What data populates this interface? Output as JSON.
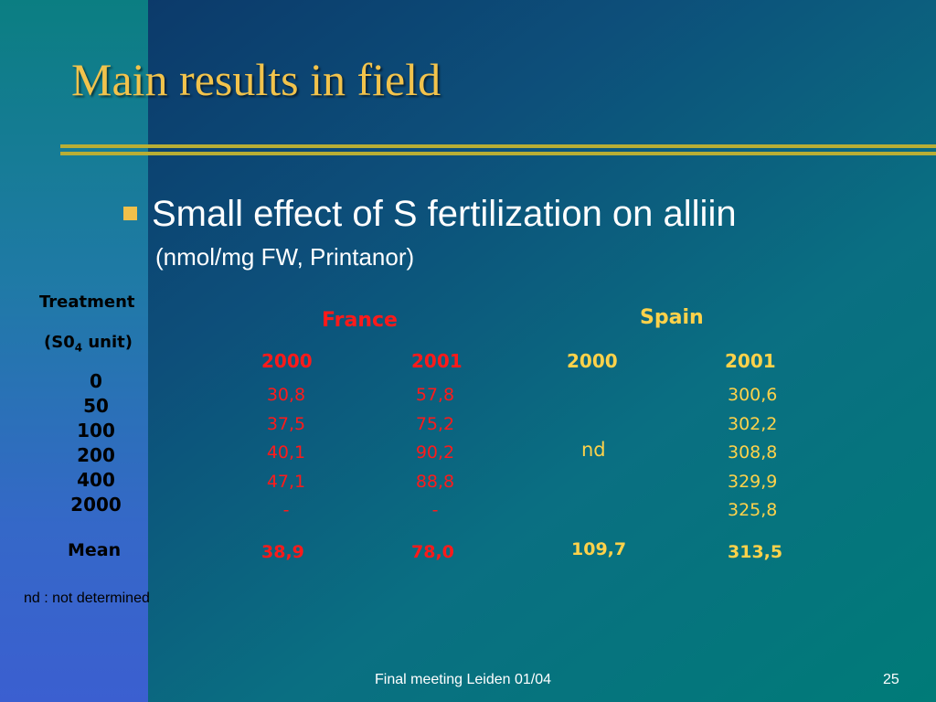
{
  "slide": {
    "title": "Main results in field",
    "bullet": "Small effect of S fertilization on alliin",
    "bullet_sub": "(nmol/mg FW, Printanor)"
  },
  "table": {
    "treatment_label": "Treatment",
    "unit_prefix": "(S0",
    "unit_sub": "4",
    "unit_suffix": " unit)",
    "doses": [
      "0",
      "50",
      "100",
      "200",
      "400",
      "2000"
    ],
    "mean_label": "Mean",
    "france": {
      "label": "France",
      "y2000": {
        "year": "2000",
        "values": [
          "30,8",
          "37,5",
          "40,1",
          "47,1",
          "-"
        ],
        "mean": "38,9"
      },
      "y2001": {
        "year": "2001",
        "values": [
          "57,8",
          "75,2",
          "90,2",
          "88,8",
          "-"
        ],
        "mean": "78,0"
      }
    },
    "spain": {
      "label": "Spain",
      "y2000": {
        "year": "2000",
        "value": "nd",
        "mean": "109,7"
      },
      "y2001": {
        "year": "2001",
        "values": [
          "300,6",
          "302,2",
          "308,8",
          "329,9",
          "325,8"
        ],
        "mean": "313,5"
      }
    }
  },
  "footnote": "nd : not determined",
  "footer": {
    "center": "Final meeting Leiden 01/04",
    "page": "25"
  },
  "colors": {
    "title": "#f2c34c",
    "france": "#ff1a1a",
    "spain": "#ffd24a",
    "rule": "#b8ae35"
  }
}
